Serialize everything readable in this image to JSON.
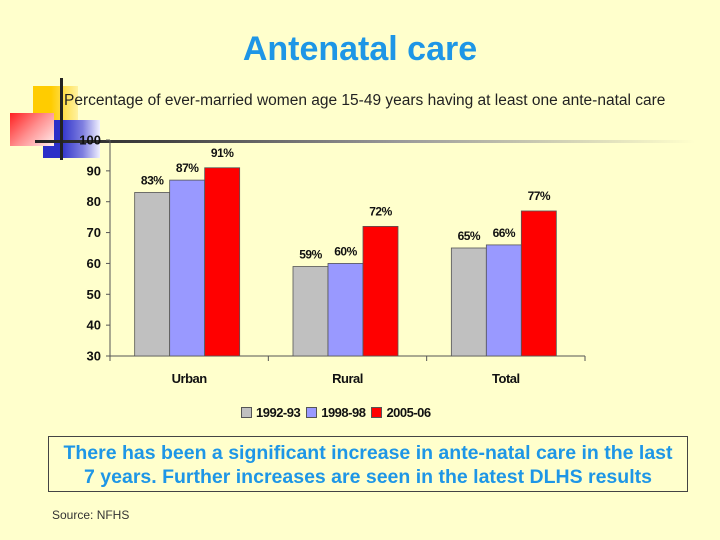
{
  "slide": {
    "title": "Antenatal care",
    "subtitle": "Percentage of ever-married women age 15-49 years having at least one ante-natal care",
    "note_line1": "There has been a significant increase in ante-natal care in the last",
    "note_line2": "7 years. Further increases are seen in the latest DLHS results",
    "source": "Source: NFHS"
  },
  "chart_data": {
    "type": "bar",
    "title": "Percentage of ever-married women age 15-49 years having at least one ante-natal care",
    "xlabel": "",
    "ylabel": "",
    "categories": [
      "Urban",
      "Rural",
      "Total"
    ],
    "series": [
      {
        "name": "1992-93",
        "color": "#C0C0C0",
        "values": [
          83,
          59,
          65
        ],
        "labels": [
          "83%",
          "59%",
          "65%"
        ]
      },
      {
        "name": "1998-98",
        "color": "#9999FF",
        "values": [
          87,
          60,
          66
        ],
        "labels": [
          "87%",
          "60%",
          "66%"
        ]
      },
      {
        "name": "2005-06",
        "color": "#FF0000",
        "values": [
          91,
          72,
          77
        ],
        "labels": [
          "91%",
          "72%",
          "77%"
        ]
      }
    ],
    "ylim": [
      30,
      100
    ],
    "yticks": [
      30,
      40,
      50,
      60,
      70,
      80,
      90,
      100
    ],
    "grid": false,
    "legend": "bottom"
  }
}
